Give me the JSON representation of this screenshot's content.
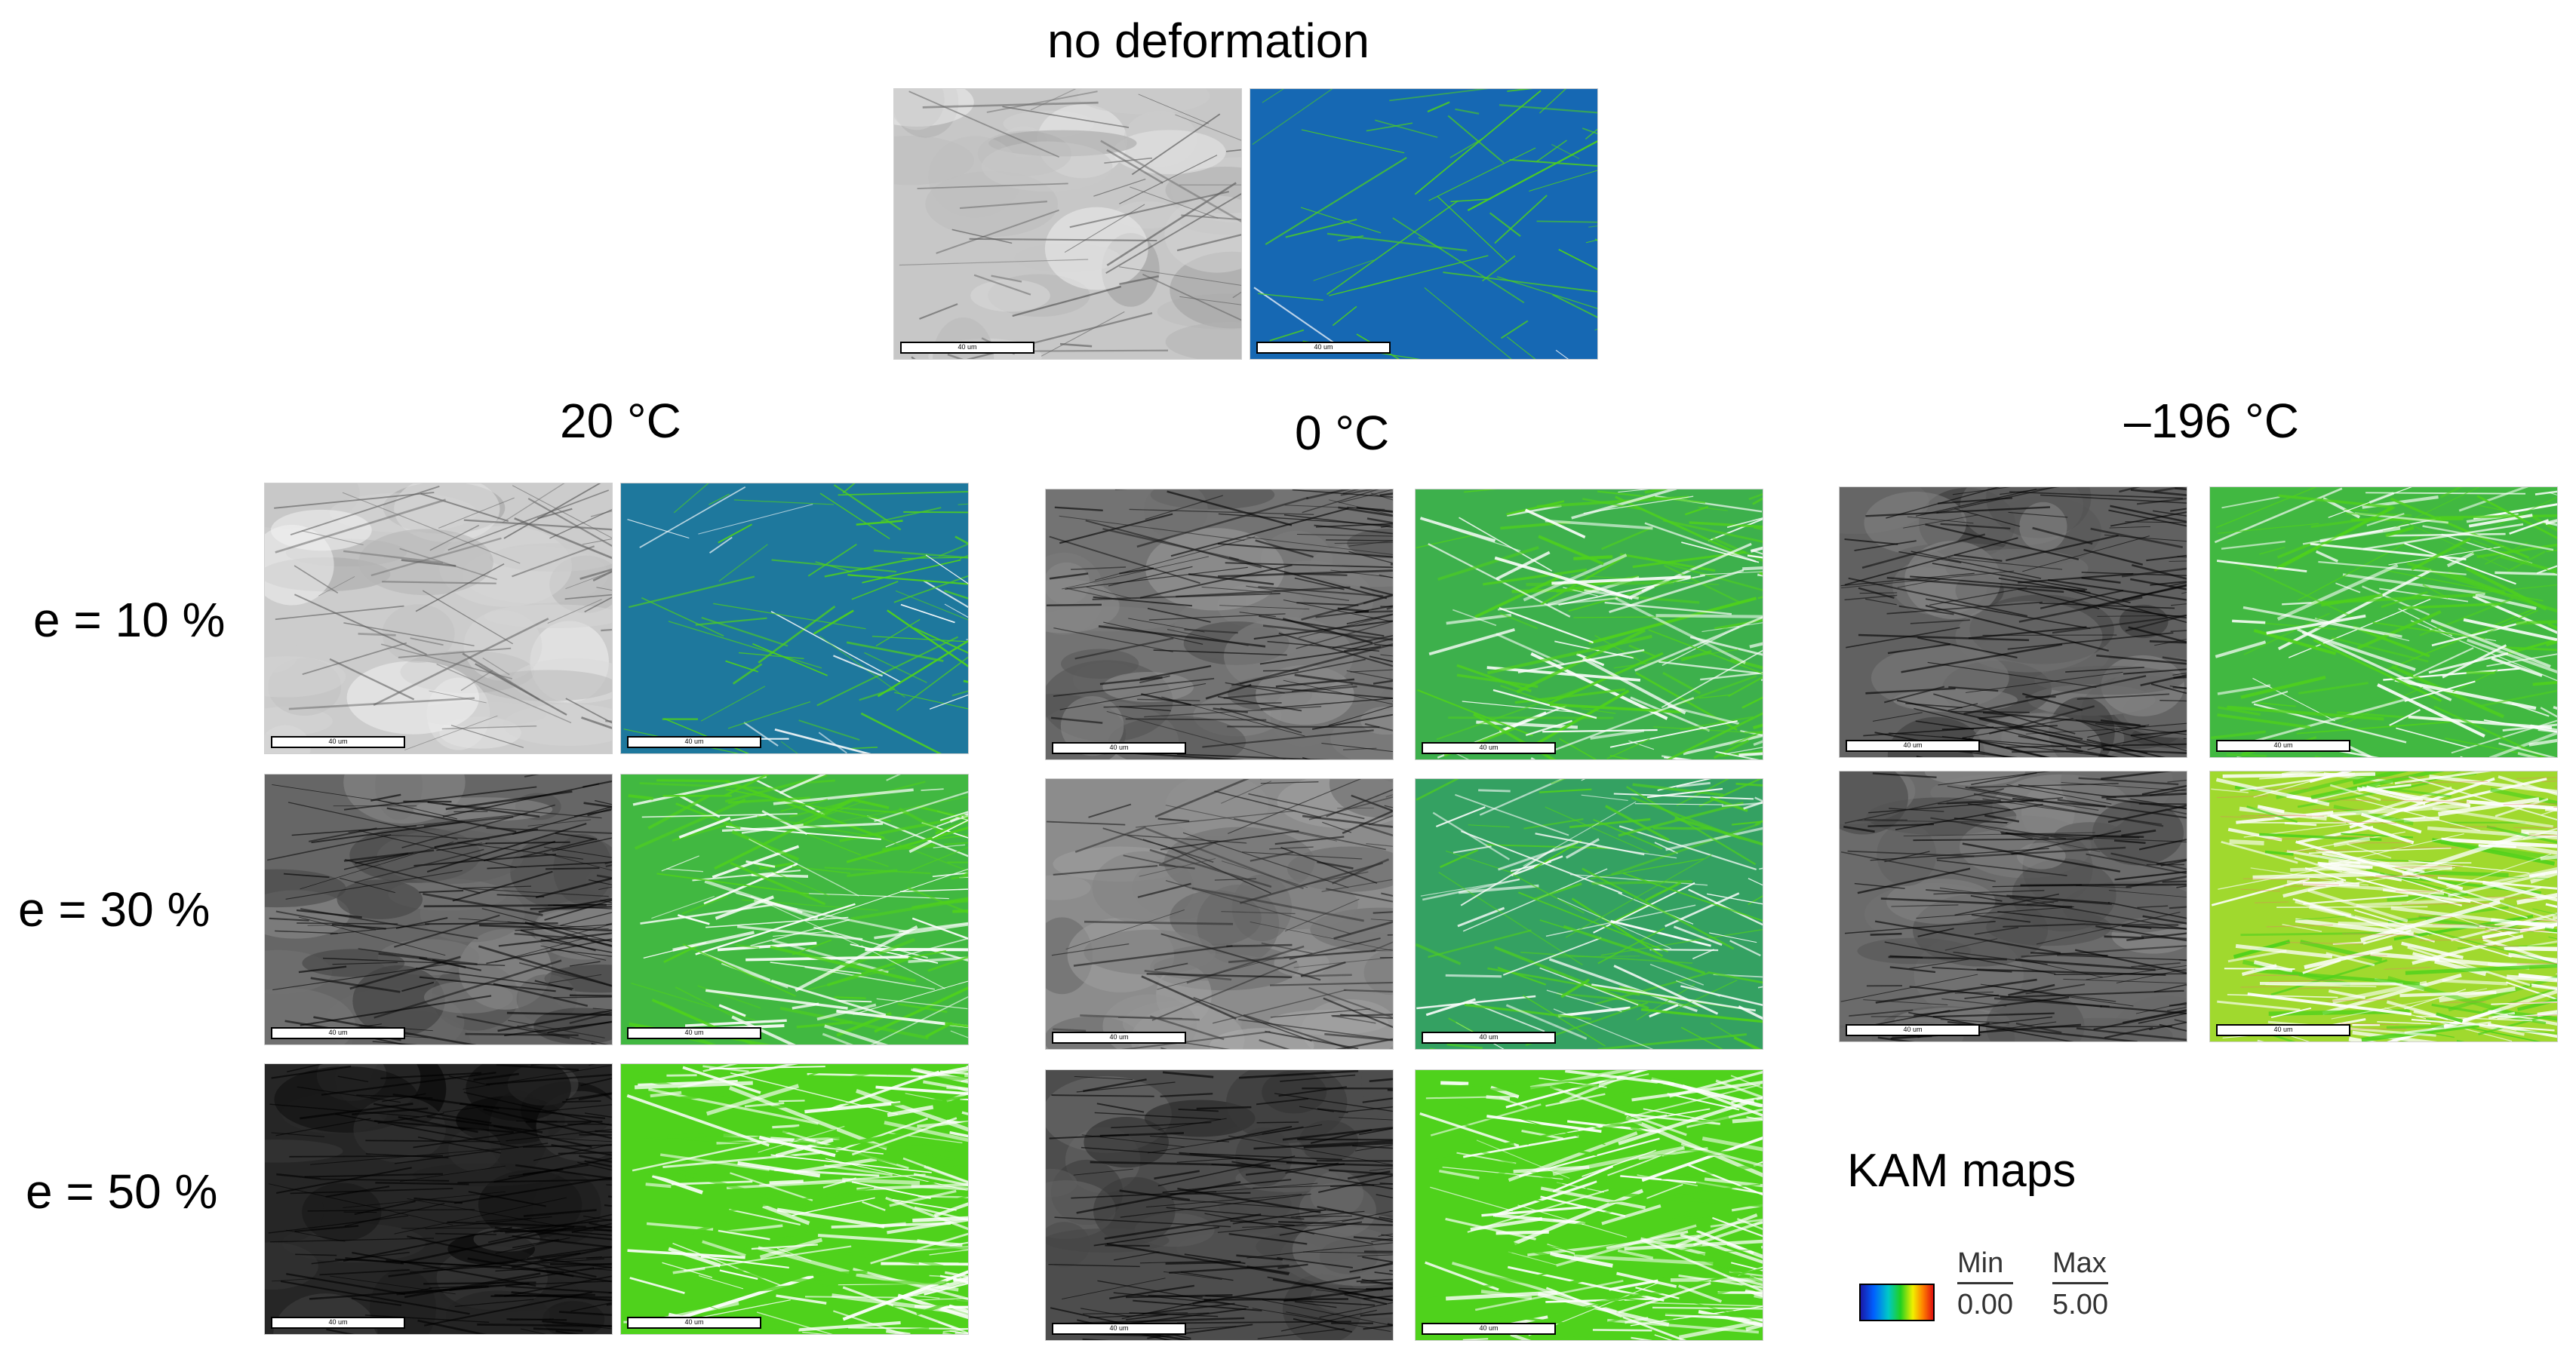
{
  "labels": {
    "no_deformation": "no deformation",
    "temp_20": "20 °C",
    "temp_0": "0 °C",
    "temp_minus196": "–196 °C",
    "strain_10": "e = 10 %",
    "strain_30": "e = 30 %",
    "strain_50": "e = 50 %"
  },
  "scale_bar_label": "40 um",
  "legend": {
    "title": "KAM maps",
    "min_label": "Min",
    "min_value": "0.00",
    "max_label": "Max",
    "max_value": "5.00"
  },
  "colors": {
    "kam_low": "#0f5cc4",
    "kam_mid": "#4fd21c",
    "kam_high": "#ffffff",
    "kam_hot": "#f0e040"
  },
  "panels": [
    {
      "id": "nodef",
      "kind": "micrograph",
      "tone": 0.78,
      "density": 0.15
    },
    {
      "id": "nodef",
      "kind": "kam",
      "level": 0.08
    },
    {
      "id": "t20-e10",
      "kind": "micrograph",
      "tone": 0.8,
      "density": 0.25
    },
    {
      "id": "t20-e10",
      "kind": "kam",
      "level": 0.18
    },
    {
      "id": "t0-e10",
      "kind": "micrograph",
      "tone": 0.45,
      "density": 0.8
    },
    {
      "id": "t0-e10",
      "kind": "kam",
      "level": 0.55
    },
    {
      "id": "t196-e10",
      "kind": "micrograph",
      "tone": 0.38,
      "density": 0.85
    },
    {
      "id": "t196-e10",
      "kind": "kam",
      "level": 0.6
    },
    {
      "id": "t20-e30",
      "kind": "micrograph",
      "tone": 0.4,
      "density": 0.8
    },
    {
      "id": "t20-e30",
      "kind": "kam",
      "level": 0.6
    },
    {
      "id": "t0-e30",
      "kind": "micrograph",
      "tone": 0.55,
      "density": 0.55
    },
    {
      "id": "t0-e30",
      "kind": "kam",
      "level": 0.45
    },
    {
      "id": "t196-e30",
      "kind": "micrograph",
      "tone": 0.42,
      "density": 0.95
    },
    {
      "id": "t196-e30",
      "kind": "kam",
      "level": 0.95
    },
    {
      "id": "t20-e50",
      "kind": "micrograph",
      "tone": 0.15,
      "density": 0.95
    },
    {
      "id": "t20-e50",
      "kind": "kam",
      "level": 0.85
    },
    {
      "id": "t0-e50",
      "kind": "micrograph",
      "tone": 0.3,
      "density": 0.95
    },
    {
      "id": "t0-e50",
      "kind": "kam",
      "level": 0.8
    }
  ]
}
